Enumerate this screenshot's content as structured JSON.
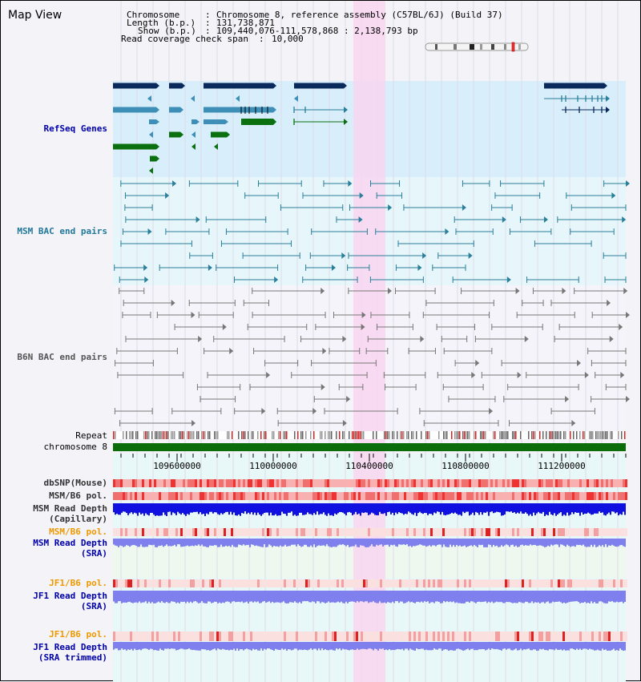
{
  "page": {
    "title": "Map View"
  },
  "info": {
    "chromosome_label": "Chromosome",
    "chromosome_value": "Chromosome 8, reference assembly (C57BL/6J) (Build 37)",
    "length_label": "Length (b.p.)",
    "length_value": "131,738,871",
    "show_label": "Show (b.p.)",
    "show_value": "109,440,076-111,578,868 : 2,138,793 bp",
    "coverage_label": "Read coverage check span",
    "coverage_value": "10,000"
  },
  "tracks": {
    "refseq": "RefSeq Genes",
    "msm_bac": "MSM BAC end pairs",
    "b6n_bac": "B6N BAC end pairs",
    "repeat": "Repeat",
    "chromosome": "chromosome 8",
    "dbsnp": "dbSNP(Mouse)",
    "msm_b6_pol_1": "MSM/B6 pol.",
    "msm_read_depth_cap": "MSM Read Depth",
    "msm_read_depth_cap_sub": "(Capillary)",
    "msm_b6_pol_2": "MSM/B6 pol.",
    "msm_read_depth_sra": "MSM Read Depth",
    "msm_read_depth_sra_sub": "(SRA)",
    "jf1_b6_pol_1": "JF1/B6 pol.",
    "jf1_read_depth_sra": "JF1 Read Depth",
    "jf1_read_depth_sra_sub": "(SRA)",
    "jf1_b6_pol_2": "JF1/B6 pol.",
    "jf1_read_depth_trim": "JF1 Read Depth",
    "jf1_read_depth_trim_sub": "(SRA trimmed)"
  },
  "axis": {
    "ticks": [
      "109600000",
      "110000000",
      "110400000",
      "110800000",
      "111200000"
    ]
  },
  "colors": {
    "gene_dark": "#0a2a5c",
    "gene_mid": "#3d8fb8",
    "gene_green": "#0a7010",
    "msm_pair": "#2a7f9a",
    "b6n_pair": "#777777",
    "highlight": "#f8d6f0",
    "chrom_green": "#0a6d0a",
    "depth_blue": "#1010e0",
    "depth_light": "#7f80ee",
    "msm_label": "#0000aa",
    "orange_label": "#ee9900"
  }
}
